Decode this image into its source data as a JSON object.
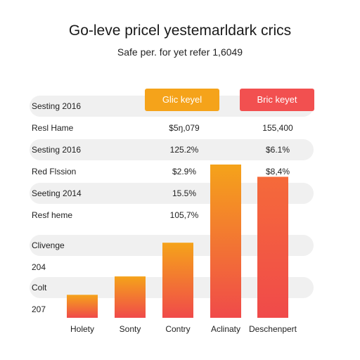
{
  "title": "Go-leve pricel yestemarldark crics",
  "subtitle": "Safe per. for yet refer 1,6049",
  "legend": [
    {
      "label": "Glic keyel",
      "color": "#f5a31a"
    },
    {
      "label": "Bric keyet",
      "color": "#f25050"
    }
  ],
  "rows": [
    {
      "label": "Sesting 2016",
      "v1": "",
      "v2": "",
      "band": true
    },
    {
      "label": "Resl Hame",
      "v1": "$5ŋ,079",
      "v2": "155,400",
      "band": false
    },
    {
      "label": "Sesting 2016",
      "v1": "125.2%",
      "v2": "$6.1%",
      "band": true
    },
    {
      "label": "Red Flssion",
      "v1": "$2.9%",
      "v2": "$8,4%",
      "band": false
    },
    {
      "label": "Seeting 2014",
      "v1": "15.5%",
      "v2": "",
      "band": true
    },
    {
      "label": "Resf heme",
      "v1": "105,7%",
      "v2": "",
      "band": false
    },
    {
      "label": "Clivenge",
      "v1": "",
      "v2": "",
      "band": true
    },
    {
      "label": "204",
      "v1": "",
      "v2": "",
      "band": false
    },
    {
      "label": "Colt",
      "v1": "",
      "v2": "",
      "band": true
    },
    {
      "label": "207",
      "v1": "",
      "v2": "",
      "band": false
    }
  ],
  "chart_data": {
    "type": "bar",
    "categories": [
      "Holety",
      "Sonty",
      "Contry",
      "Aclinaty",
      "Deschenpert"
    ],
    "values": [
      15,
      27,
      49,
      100,
      92
    ],
    "ylim": [
      0,
      100
    ],
    "colors": {
      "low": "#f25050",
      "high": "#f5a31a"
    }
  }
}
